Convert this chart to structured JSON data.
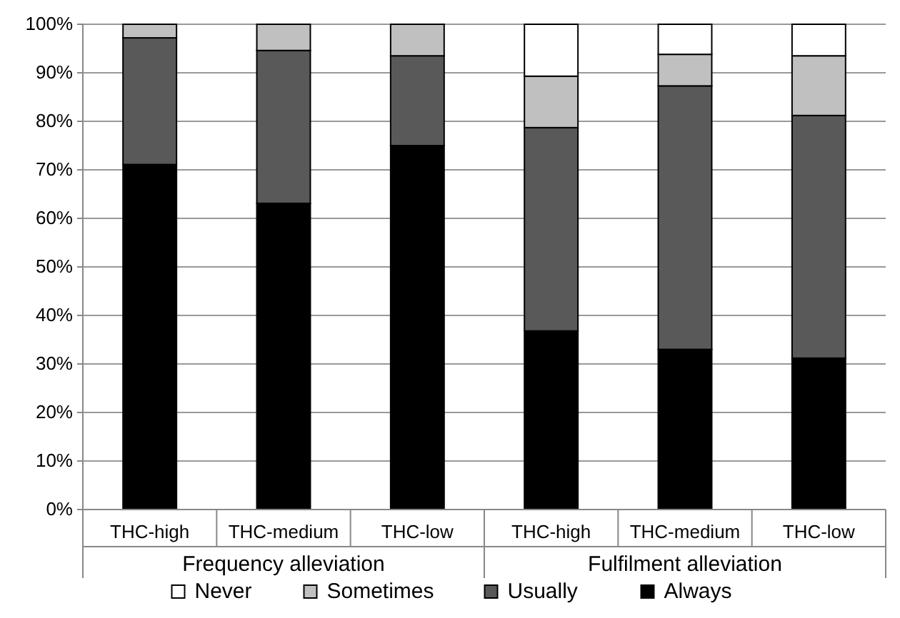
{
  "chart_data": {
    "type": "bar",
    "stacked": true,
    "categories": [
      "THC-high",
      "THC-medium",
      "THC-low",
      "THC-high",
      "THC-medium",
      "THC-low"
    ],
    "series": [
      {
        "name": "Always",
        "color": "#000000",
        "values": [
          71.1,
          63.1,
          75.0,
          36.8,
          33.0,
          31.2
        ]
      },
      {
        "name": "Usually",
        "color": "#595959",
        "values": [
          26.1,
          31.5,
          18.5,
          41.9,
          54.3,
          50.0
        ]
      },
      {
        "name": "Sometimes",
        "color": "#c0c0c0",
        "values": [
          2.8,
          5.4,
          6.5,
          10.6,
          6.5,
          12.3
        ]
      },
      {
        "name": "Never",
        "color": "#ffffff",
        "values": [
          0,
          0,
          0,
          10.7,
          6.2,
          6.5
        ]
      }
    ],
    "annotations": [
      "Frequency alleviation",
      "Fulfilment alleviation"
    ],
    "ylim": [
      0,
      100
    ],
    "yticks": [
      {
        "value": 0,
        "label": "0%"
      },
      {
        "value": 10,
        "label": "10%"
      },
      {
        "value": 20,
        "label": "20%"
      },
      {
        "value": 30,
        "label": "30%"
      },
      {
        "value": 40,
        "label": "40%"
      },
      {
        "value": 50,
        "label": "50%"
      },
      {
        "value": 60,
        "label": "60%"
      },
      {
        "value": 70,
        "label": "70%"
      },
      {
        "value": 80,
        "label": "80%"
      },
      {
        "value": 90,
        "label": "90%"
      },
      {
        "value": 100,
        "label": "100%"
      }
    ],
    "grid": "y",
    "legend": "bottom"
  }
}
